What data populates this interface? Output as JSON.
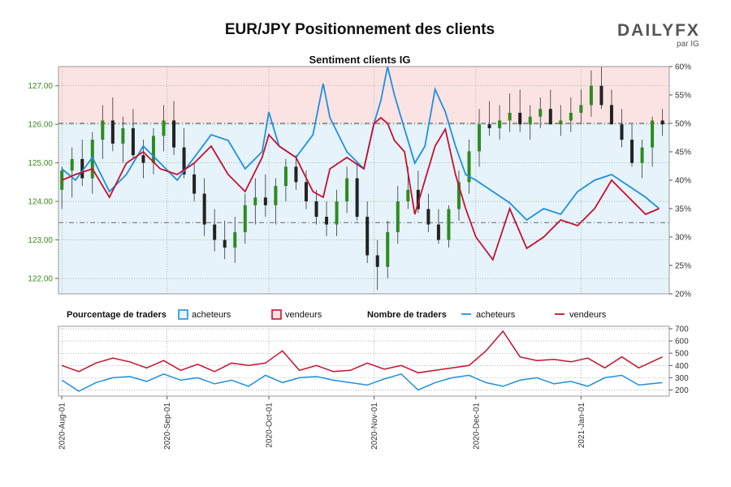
{
  "header": {
    "title": "EUR/JPY Positionnement des clients",
    "subtitle": "Sentiment clients IG",
    "logo_text": "DAILYFX",
    "logo_sub": "par IG"
  },
  "colors": {
    "price_axis": "#3a8a1e",
    "buyers_line": "#1e90e0",
    "sellers_line": "#c8102e",
    "buy_fill": "#e6f3fb",
    "sell_fill": "#fbe3e3",
    "candle_up": "#2e8b1f",
    "candle_down": "#222222"
  },
  "chart_data": [
    {
      "type": "line",
      "name": "price-sentiment",
      "x_ticks": [
        "2020-Aug-01",
        "2020-Sep-01",
        "2020-Oct-01",
        "2020-Nov-01",
        "2020-Dec-01",
        "2021-Jan-01"
      ],
      "y_left_ticks": [
        "122.00",
        "123.00",
        "124.00",
        "125.00",
        "126.00",
        "127.00"
      ],
      "y_left_range": [
        121.6,
        127.5
      ],
      "y_right_ticks": [
        "20%",
        "25%",
        "30%",
        "35%",
        "40%",
        "45%",
        "50%",
        "55%",
        "60%"
      ],
      "y_right_range": [
        20,
        60
      ],
      "reference_lines": {
        "price": 123.45,
        "percent": 50
      },
      "series": [
        {
          "name": "acheteurs",
          "style": "line",
          "x": [
            "2020-08-01",
            "2020-08-05",
            "2020-08-10",
            "2020-08-15",
            "2020-08-20",
            "2020-08-25",
            "2020-08-30",
            "2020-09-04",
            "2020-09-09",
            "2020-09-14",
            "2020-09-19",
            "2020-09-24",
            "2020-09-29",
            "2020-10-01",
            "2020-10-04",
            "2020-10-09",
            "2020-10-14",
            "2020-10-17",
            "2020-10-19",
            "2020-10-24",
            "2020-10-29",
            "2020-11-01",
            "2020-11-03",
            "2020-11-05",
            "2020-11-07",
            "2020-11-10",
            "2020-11-13",
            "2020-11-16",
            "2020-11-19",
            "2020-11-22",
            "2020-11-25",
            "2020-11-28",
            "2020-12-01",
            "2020-12-06",
            "2020-12-11",
            "2020-12-16",
            "2020-12-21",
            "2020-12-26",
            "2020-12-31",
            "2021-01-05",
            "2021-01-10",
            "2021-01-15",
            "2021-01-20",
            "2021-01-24"
          ],
          "y": [
            42,
            40,
            44,
            38,
            41,
            46,
            43,
            40,
            44,
            48,
            47,
            42,
            45,
            52,
            46,
            44,
            48,
            57,
            51,
            45,
            42,
            50,
            54,
            60,
            55,
            49,
            43,
            46,
            56,
            52,
            46,
            41,
            40,
            38,
            36,
            33,
            35,
            34,
            38,
            40,
            41,
            39,
            37,
            35
          ]
        },
        {
          "name": "vendeurs",
          "style": "line",
          "x": [
            "2020-08-01",
            "2020-08-05",
            "2020-08-10",
            "2020-08-15",
            "2020-08-20",
            "2020-08-25",
            "2020-08-30",
            "2020-09-04",
            "2020-09-09",
            "2020-09-14",
            "2020-09-19",
            "2020-09-24",
            "2020-09-29",
            "2020-10-01",
            "2020-10-04",
            "2020-10-09",
            "2020-10-14",
            "2020-10-17",
            "2020-10-19",
            "2020-10-24",
            "2020-10-29",
            "2020-11-01",
            "2020-11-03",
            "2020-11-05",
            "2020-11-07",
            "2020-11-10",
            "2020-11-13",
            "2020-11-16",
            "2020-11-19",
            "2020-11-22",
            "2020-11-25",
            "2020-11-28",
            "2020-12-01",
            "2020-12-06",
            "2020-12-11",
            "2020-12-16",
            "2020-12-21",
            "2020-12-26",
            "2020-12-31",
            "2021-01-05",
            "2021-01-10",
            "2021-01-15",
            "2021-01-20",
            "2021-01-24"
          ],
          "y": [
            40,
            41,
            42,
            37,
            43,
            45,
            42,
            41,
            43,
            46,
            41,
            38,
            44,
            48,
            46,
            44,
            38,
            37,
            42,
            44,
            42,
            50,
            51,
            50,
            47,
            45,
            34,
            40,
            46,
            49,
            41,
            35,
            30,
            26,
            35,
            28,
            30,
            33,
            32,
            35,
            40,
            37,
            34,
            35
          ]
        }
      ],
      "candles": {
        "x": [
          "2020-08-01",
          "2020-08-04",
          "2020-08-07",
          "2020-08-10",
          "2020-08-13",
          "2020-08-16",
          "2020-08-19",
          "2020-08-22",
          "2020-08-25",
          "2020-08-28",
          "2020-08-31",
          "2020-09-03",
          "2020-09-06",
          "2020-09-09",
          "2020-09-12",
          "2020-09-15",
          "2020-09-18",
          "2020-09-21",
          "2020-09-24",
          "2020-09-27",
          "2020-09-30",
          "2020-10-03",
          "2020-10-06",
          "2020-10-09",
          "2020-10-12",
          "2020-10-15",
          "2020-10-18",
          "2020-10-21",
          "2020-10-24",
          "2020-10-27",
          "2020-10-30",
          "2020-11-02",
          "2020-11-05",
          "2020-11-08",
          "2020-11-11",
          "2020-11-14",
          "2020-11-17",
          "2020-11-20",
          "2020-11-23",
          "2020-11-26",
          "2020-11-29",
          "2020-12-02",
          "2020-12-05",
          "2020-12-08",
          "2020-12-11",
          "2020-12-14",
          "2020-12-17",
          "2020-12-20",
          "2020-12-23",
          "2020-12-26",
          "2020-12-29",
          "2021-01-01",
          "2021-01-04",
          "2021-01-07",
          "2021-01-10",
          "2021-01-13",
          "2021-01-16",
          "2021-01-19",
          "2021-01-22",
          "2021-01-25"
        ],
        "open": [
          124.3,
          124.8,
          125.1,
          124.6,
          125.6,
          126.1,
          125.5,
          125.9,
          125.2,
          125.0,
          125.7,
          126.1,
          125.4,
          124.7,
          124.2,
          123.4,
          123.0,
          122.8,
          123.2,
          123.9,
          124.1,
          123.9,
          124.4,
          124.9,
          124.5,
          124.0,
          123.6,
          123.4,
          124.0,
          124.6,
          123.6,
          122.6,
          122.3,
          123.2,
          124.0,
          124.3,
          123.8,
          123.4,
          123.0,
          123.8,
          124.5,
          125.3,
          126.0,
          125.9,
          126.1,
          126.3,
          126.0,
          126.2,
          126.4,
          126.0,
          126.1,
          126.3,
          126.5,
          127.0,
          126.5,
          126.0,
          125.6,
          125.0,
          125.4,
          126.1
        ],
        "high": [
          124.9,
          125.4,
          125.6,
          125.8,
          126.5,
          126.7,
          126.2,
          126.4,
          125.6,
          125.9,
          126.5,
          126.6,
          125.9,
          125.0,
          124.6,
          123.8,
          123.5,
          123.6,
          124.2,
          124.6,
          124.7,
          124.6,
          125.1,
          125.2,
          124.8,
          124.3,
          124.0,
          124.3,
          124.9,
          125.0,
          124.0,
          123.0,
          123.5,
          124.4,
          124.9,
          124.8,
          124.2,
          123.8,
          123.9,
          124.8,
          125.6,
          126.4,
          126.6,
          126.5,
          126.8,
          126.9,
          126.5,
          126.7,
          126.9,
          126.5,
          126.7,
          126.9,
          127.4,
          127.5,
          126.9,
          126.4,
          126.0,
          125.6,
          126.2,
          126.4
        ],
        "low": [
          123.8,
          124.1,
          124.4,
          124.2,
          125.1,
          125.3,
          125.0,
          125.1,
          124.6,
          124.7,
          125.3,
          125.2,
          124.6,
          124.0,
          123.1,
          122.7,
          122.5,
          122.4,
          122.9,
          123.4,
          123.6,
          123.4,
          124.0,
          124.3,
          123.8,
          123.4,
          123.1,
          123.1,
          123.7,
          123.5,
          122.4,
          121.7,
          122.0,
          122.9,
          123.8,
          123.7,
          123.2,
          122.9,
          122.8,
          123.5,
          124.2,
          124.9,
          125.7,
          125.6,
          125.8,
          125.8,
          125.6,
          125.9,
          126.0,
          125.7,
          125.8,
          126.0,
          126.2,
          126.4,
          126.0,
          125.4,
          124.9,
          124.6,
          124.9,
          125.7
        ],
        "close": [
          124.8,
          125.1,
          124.6,
          125.6,
          126.1,
          125.5,
          125.9,
          125.2,
          125.0,
          125.7,
          126.1,
          125.4,
          124.7,
          124.2,
          123.4,
          123.0,
          122.8,
          123.2,
          123.9,
          124.1,
          123.9,
          124.4,
          124.9,
          124.5,
          124.0,
          123.6,
          123.4,
          124.0,
          124.6,
          123.6,
          122.6,
          122.3,
          123.2,
          124.0,
          124.3,
          123.8,
          123.4,
          123.0,
          123.8,
          124.5,
          125.3,
          126.0,
          125.9,
          126.1,
          126.3,
          126.0,
          126.2,
          126.4,
          126.0,
          126.1,
          126.3,
          126.5,
          127.0,
          126.5,
          126.0,
          125.6,
          125.0,
          125.4,
          126.1,
          126.0
        ]
      }
    },
    {
      "type": "line",
      "name": "trader-counts",
      "x_ticks": [
        "2020-Aug-01",
        "2020-Sep-01",
        "2020-Oct-01",
        "2020-Nov-01",
        "2020-Dec-01",
        "2021-Jan-01"
      ],
      "y_right_ticks": [
        "200",
        "300",
        "400",
        "500",
        "600",
        "700"
      ],
      "y_right_range": [
        150,
        720
      ],
      "series": [
        {
          "name": "acheteurs",
          "x": [
            "2020-08-01",
            "2020-08-06",
            "2020-08-11",
            "2020-08-16",
            "2020-08-21",
            "2020-08-26",
            "2020-08-31",
            "2020-09-05",
            "2020-09-10",
            "2020-09-15",
            "2020-09-20",
            "2020-09-25",
            "2020-09-30",
            "2020-10-05",
            "2020-10-10",
            "2020-10-15",
            "2020-10-20",
            "2020-10-25",
            "2020-10-30",
            "2020-11-04",
            "2020-11-09",
            "2020-11-14",
            "2020-11-19",
            "2020-11-24",
            "2020-11-29",
            "2020-12-04",
            "2020-12-09",
            "2020-12-14",
            "2020-12-19",
            "2020-12-24",
            "2020-12-29",
            "2021-01-03",
            "2021-01-08",
            "2021-01-13",
            "2021-01-18",
            "2021-01-25"
          ],
          "y": [
            280,
            190,
            260,
            300,
            310,
            270,
            330,
            280,
            300,
            250,
            280,
            230,
            320,
            260,
            300,
            310,
            280,
            260,
            240,
            290,
            330,
            200,
            260,
            300,
            320,
            260,
            230,
            280,
            300,
            250,
            270,
            230,
            300,
            320,
            240,
            260
          ]
        },
        {
          "name": "vendeurs",
          "x": [
            "2020-08-01",
            "2020-08-06",
            "2020-08-11",
            "2020-08-16",
            "2020-08-21",
            "2020-08-26",
            "2020-08-31",
            "2020-09-05",
            "2020-09-10",
            "2020-09-15",
            "2020-09-20",
            "2020-09-25",
            "2020-09-30",
            "2020-10-05",
            "2020-10-10",
            "2020-10-15",
            "2020-10-20",
            "2020-10-25",
            "2020-10-30",
            "2020-11-04",
            "2020-11-09",
            "2020-11-14",
            "2020-11-19",
            "2020-11-24",
            "2020-11-29",
            "2020-12-04",
            "2020-12-09",
            "2020-12-14",
            "2020-12-19",
            "2020-12-24",
            "2020-12-29",
            "2021-01-03",
            "2021-01-08",
            "2021-01-13",
            "2021-01-18",
            "2021-01-25"
          ],
          "y": [
            400,
            350,
            420,
            460,
            430,
            380,
            440,
            360,
            410,
            350,
            420,
            400,
            420,
            520,
            360,
            400,
            350,
            360,
            420,
            370,
            400,
            340,
            360,
            380,
            400,
            520,
            680,
            470,
            440,
            450,
            430,
            460,
            380,
            470,
            380,
            470
          ]
        }
      ]
    }
  ],
  "legend": {
    "pct_title": "Pourcentage de traders",
    "pct_buyers": "acheteurs",
    "pct_sellers": "vendeurs",
    "count_title": "Nombre de traders",
    "count_buyers": "acheteurs",
    "count_sellers": "vendeurs"
  }
}
